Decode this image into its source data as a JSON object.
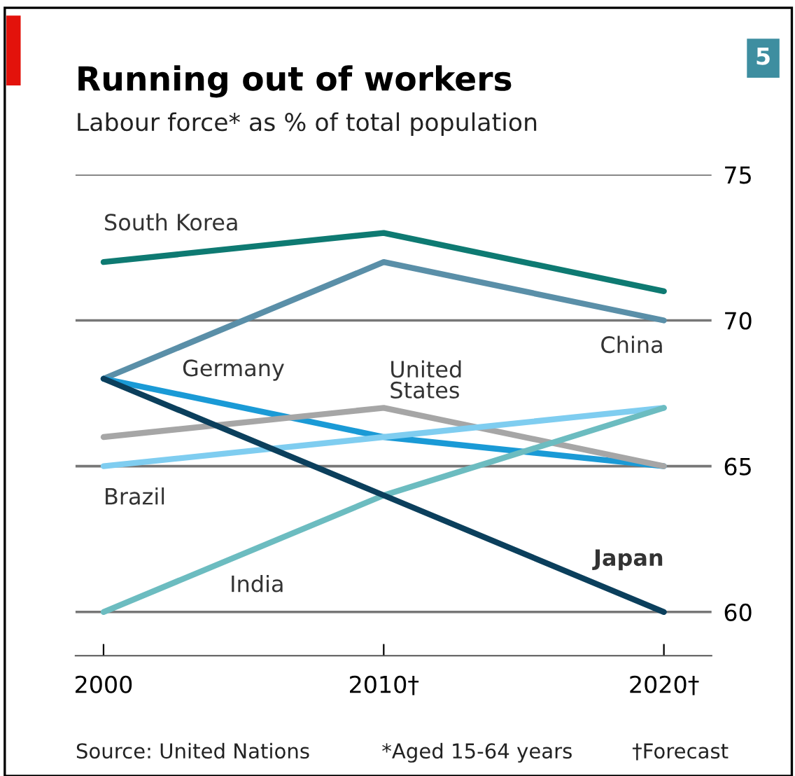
{
  "chart_data": {
    "type": "line",
    "title": "Running out of workers",
    "subtitle": "Labour force* as % of total population",
    "categories": [
      "2000",
      "2010†",
      "2020†"
    ],
    "series": [
      {
        "name": "South Korea",
        "color": "#0e7a72",
        "values": [
          72,
          73,
          71
        ]
      },
      {
        "name": "China",
        "color": "#5a8fa8",
        "values": [
          68,
          72,
          70
        ]
      },
      {
        "name": "Germany",
        "color": "#1a9ad6",
        "values": [
          68,
          66,
          65
        ]
      },
      {
        "name": "United States",
        "color": "#a6a6a6",
        "values": [
          66,
          67,
          65
        ]
      },
      {
        "name": "Brazil",
        "color": "#7fcdf0",
        "values": [
          65,
          66,
          67
        ]
      },
      {
        "name": "India",
        "color": "#6cbcc0",
        "values": [
          60,
          64,
          67
        ]
      },
      {
        "name": "Japan",
        "color": "#0b3f5c",
        "values": [
          68,
          64,
          60
        ]
      }
    ],
    "ylim": [
      58.5,
      75
    ],
    "yticks": [
      60,
      65,
      70,
      75
    ],
    "grid": "y",
    "legend": false,
    "marker": "none",
    "line_style": "solid",
    "annotations": [
      "5",
      "Source: United Nations",
      "*Aged 15-64 years",
      "†Forecast"
    ]
  }
}
